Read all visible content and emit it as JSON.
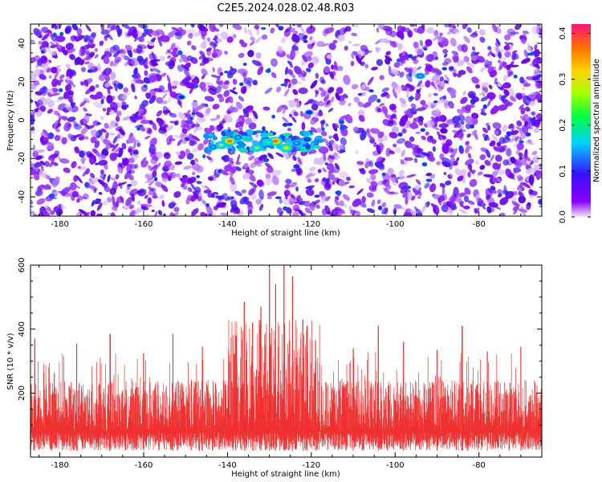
{
  "title": "C2E5.2024.028.02.48.R03",
  "chart_data": [
    {
      "type": "heatmap",
      "xlabel": "Height of straight line (km)",
      "ylabel": "Frequency (Hz)",
      "xlim": [
        -187,
        -65
      ],
      "ylim": [
        -50,
        50
      ],
      "xticks": [
        -180,
        -160,
        -140,
        -120,
        -100,
        -80
      ],
      "yticks": [
        -40,
        -20,
        0,
        20,
        40
      ],
      "colorbar": {
        "label": "Normalized spectral amplitude",
        "range": [
          0,
          0.42
        ],
        "ticks": [
          "0.0",
          "0.1",
          "0.2",
          "0.3",
          "0.4"
        ],
        "colors": [
          "#f4e6ff",
          "#8a00ff",
          "#3a10ff",
          "#00d0ff",
          "#00ff40",
          "#a8ff00",
          "#ffd200",
          "#ff7000",
          "#ff1080"
        ]
      },
      "hotspots": [
        {
          "x": -128.5,
          "y": -11,
          "value": 0.4
        },
        {
          "x": -139.5,
          "y": -11,
          "value": 0.38
        },
        {
          "x": -126,
          "y": -14.5,
          "value": 0.36
        },
        {
          "x": -141.5,
          "y": -13,
          "value": 0.3
        },
        {
          "x": -133,
          "y": -14.5,
          "value": 0.3
        },
        {
          "x": -130.5,
          "y": -11.5,
          "value": 0.28
        },
        {
          "x": -123.5,
          "y": -12,
          "value": 0.24
        },
        {
          "x": -137.5,
          "y": -9,
          "value": 0.22
        },
        {
          "x": -143.5,
          "y": -14,
          "value": 0.2
        },
        {
          "x": -121,
          "y": -10,
          "value": 0.18
        },
        {
          "x": -94,
          "y": 23,
          "value": 0.2
        },
        {
          "x": -151,
          "y": 12,
          "value": 0.12
        },
        {
          "x": -120.5,
          "y": 4,
          "value": 0.14
        }
      ],
      "notes": "dense purple speckle background; weaker lane near x -127 to -132"
    },
    {
      "type": "line",
      "xlabel": "Height of straight line (km)",
      "ylabel": "SNR (10 * v/v)",
      "xlim": [
        -187,
        -65
      ],
      "ylim": [
        0,
        600
      ],
      "xticks": [
        -180,
        -160,
        -140,
        -120,
        -100,
        -80
      ],
      "yticks": [
        200,
        400,
        600
      ],
      "series_color": "#ee3030",
      "baseline_range": [
        20,
        220
      ],
      "spikes": [
        {
          "x": -126.5,
          "y": 600
        },
        {
          "x": -130,
          "y": 590
        },
        {
          "x": -124.5,
          "y": 565
        },
        {
          "x": -128.5,
          "y": 540
        },
        {
          "x": -136,
          "y": 485
        },
        {
          "x": -132,
          "y": 470
        },
        {
          "x": -122,
          "y": 430
        },
        {
          "x": -134,
          "y": 420
        },
        {
          "x": -121,
          "y": 410
        },
        {
          "x": -84,
          "y": 410
        },
        {
          "x": -104,
          "y": 410
        },
        {
          "x": -138,
          "y": 380
        },
        {
          "x": -153,
          "y": 385
        },
        {
          "x": -168,
          "y": 385
        },
        {
          "x": -119,
          "y": 365
        },
        {
          "x": -186,
          "y": 370
        },
        {
          "x": -176,
          "y": 355
        },
        {
          "x": -98,
          "y": 360
        },
        {
          "x": -146,
          "y": 345
        },
        {
          "x": -110,
          "y": 340
        },
        {
          "x": -90,
          "y": 335
        },
        {
          "x": -70,
          "y": 345
        },
        {
          "x": -78,
          "y": 330
        },
        {
          "x": -160,
          "y": 325
        }
      ]
    }
  ]
}
